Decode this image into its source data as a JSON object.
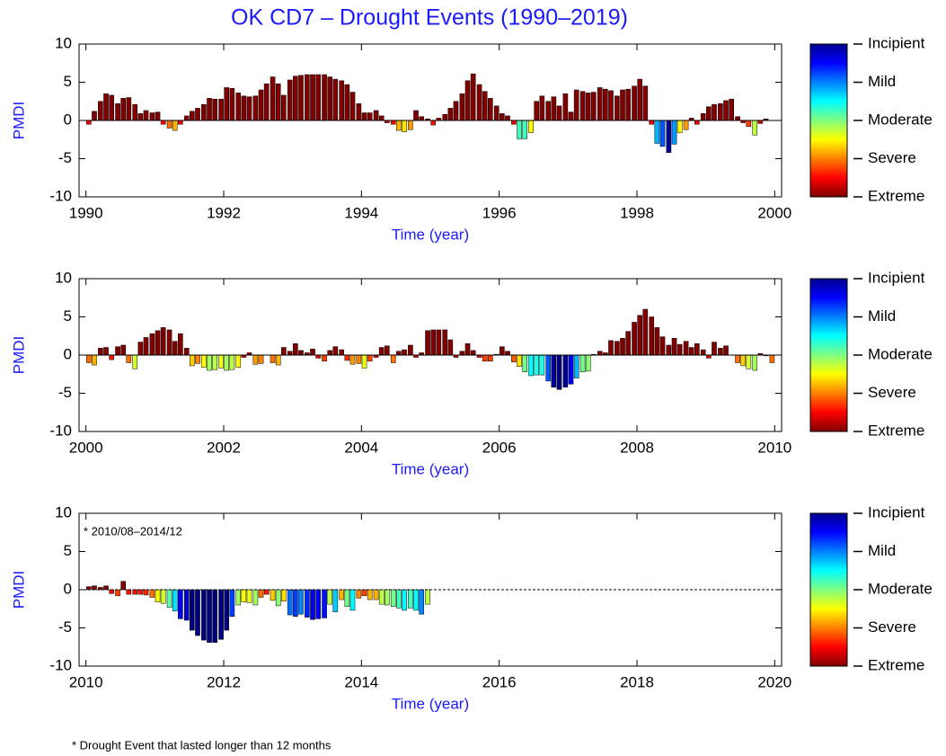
{
  "chart_data": [
    {
      "type": "bar",
      "title": "OK CD7 – Drought Events (1990–2019)",
      "xlabel": "Time (year)",
      "ylabel": "PMDI",
      "xlim": [
        1989.9,
        2000.1
      ],
      "xticks": [
        1990,
        1992,
        1994,
        1996,
        1998,
        2000
      ],
      "ylim": [
        -10,
        10
      ],
      "yticks": [
        -10,
        -5,
        0,
        5,
        10
      ],
      "colorbar_labels": [
        "Incipient",
        "Mild",
        "Moderate",
        "Severe",
        "Extreme"
      ],
      "x": [
        1990,
        1990.08,
        1990.17,
        1990.25,
        1990.33,
        1990.42,
        1990.5,
        1990.58,
        1990.67,
        1990.75,
        1990.83,
        1990.92,
        1991,
        1991.08,
        1991.17,
        1991.25,
        1991.33,
        1991.42,
        1991.5,
        1991.58,
        1991.67,
        1991.75,
        1991.83,
        1991.92,
        1992,
        1992.08,
        1992.17,
        1992.25,
        1992.33,
        1992.42,
        1992.5,
        1992.58,
        1992.67,
        1992.75,
        1992.83,
        1992.92,
        1993,
        1993.08,
        1993.17,
        1993.25,
        1993.33,
        1993.42,
        1993.5,
        1993.58,
        1993.67,
        1993.75,
        1993.83,
        1993.92,
        1994,
        1994.08,
        1994.17,
        1994.25,
        1994.33,
        1994.42,
        1994.5,
        1994.58,
        1994.67,
        1994.75,
        1994.83,
        1994.92,
        1995,
        1995.08,
        1995.17,
        1995.25,
        1995.33,
        1995.42,
        1995.5,
        1995.58,
        1995.67,
        1995.75,
        1995.83,
        1995.92,
        1996,
        1996.08,
        1996.17,
        1996.25,
        1996.33,
        1996.42,
        1996.5,
        1996.58,
        1996.67,
        1996.75,
        1996.83,
        1996.92,
        1997,
        1997.08,
        1997.17,
        1997.25,
        1997.33,
        1997.42,
        1997.5,
        1997.58,
        1997.67,
        1997.75,
        1997.83,
        1997.92,
        1998,
        1998.08,
        1998.17,
        1998.25,
        1998.33,
        1998.42,
        1998.5,
        1998.58,
        1998.67,
        1998.75,
        1998.83,
        1998.92,
        1999,
        1999.08,
        1999.17,
        1999.25,
        1999.33,
        1999.42,
        1999.5,
        1999.58,
        1999.67,
        1999.75,
        1999.83,
        1999.92
      ],
      "values": [
        -0.5,
        1.2,
        2.5,
        3.5,
        3.3,
        2.2,
        2.9,
        3.0,
        2.1,
        0.9,
        1.3,
        1.0,
        1.1,
        -0.5,
        -1.0,
        -1.3,
        -0.5,
        0.6,
        1.2,
        1.6,
        2.1,
        2.9,
        2.8,
        2.8,
        4.3,
        4.2,
        3.6,
        3.2,
        3.1,
        3.2,
        4.0,
        4.8,
        5.7,
        4.8,
        3.3,
        5.3,
        5.8,
        5.9,
        6.0,
        6.0,
        6.0,
        6.0,
        5.7,
        5.4,
        5.2,
        4.7,
        3.7,
        2.2,
        1.0,
        1.0,
        1.3,
        0.6,
        -0.3,
        -0.5,
        -1.3,
        -1.5,
        -1.2,
        1.3,
        0.5,
        0.2,
        -0.6,
        0.3,
        0.8,
        1.6,
        2.5,
        3.5,
        5.2,
        6.1,
        4.7,
        3.8,
        2.9,
        1.9,
        0.9,
        0.6,
        -0.5,
        -2.4,
        -2.4,
        -1.6,
        2.5,
        3.2,
        2.5,
        3.1,
        1.9,
        3.5,
        1.1,
        4.0,
        3.8,
        3.6,
        3.7,
        4.3,
        4.1,
        3.9,
        3.2,
        4.0,
        4.1,
        4.5,
        5.4,
        4.5,
        -0.5,
        -3.0,
        -3.4,
        -4.2,
        -3.1,
        -1.6,
        -1.2,
        0.3,
        -0.5,
        0.9,
        1.8,
        2.1,
        2.2,
        2.6,
        2.8,
        0.5,
        -0.3,
        -0.8,
        -1.9,
        -0.4,
        0.2,
        0.0
      ]
    },
    {
      "type": "bar",
      "xlabel": "Time (year)",
      "ylabel": "PMDI",
      "xlim": [
        1999.9,
        2010.1
      ],
      "xticks": [
        2000,
        2002,
        2004,
        2006,
        2008,
        2010
      ],
      "ylim": [
        -10,
        10
      ],
      "yticks": [
        -10,
        -5,
        0,
        5,
        10
      ],
      "colorbar_labels": [
        "Incipient",
        "Mild",
        "Moderate",
        "Severe",
        "Extreme"
      ],
      "x": [
        2000,
        2000.08,
        2000.17,
        2000.25,
        2000.33,
        2000.42,
        2000.5,
        2000.58,
        2000.67,
        2000.75,
        2000.83,
        2000.92,
        2001,
        2001.08,
        2001.17,
        2001.25,
        2001.33,
        2001.42,
        2001.5,
        2001.58,
        2001.67,
        2001.75,
        2001.83,
        2001.92,
        2002,
        2002.08,
        2002.17,
        2002.25,
        2002.33,
        2002.42,
        2002.5,
        2002.58,
        2002.67,
        2002.75,
        2002.83,
        2002.92,
        2003,
        2003.08,
        2003.17,
        2003.25,
        2003.33,
        2003.42,
        2003.5,
        2003.58,
        2003.67,
        2003.75,
        2003.83,
        2003.92,
        2004,
        2004.08,
        2004.17,
        2004.25,
        2004.33,
        2004.42,
        2004.5,
        2004.58,
        2004.67,
        2004.75,
        2004.83,
        2004.92,
        2005,
        2005.08,
        2005.17,
        2005.25,
        2005.33,
        2005.42,
        2005.5,
        2005.58,
        2005.67,
        2005.75,
        2005.83,
        2005.92,
        2006,
        2006.08,
        2006.17,
        2006.25,
        2006.33,
        2006.42,
        2006.5,
        2006.58,
        2006.67,
        2006.75,
        2006.83,
        2006.92,
        2007,
        2007.08,
        2007.17,
        2007.25,
        2007.33,
        2007.42,
        2007.5,
        2007.58,
        2007.67,
        2007.75,
        2007.83,
        2007.92,
        2008,
        2008.08,
        2008.17,
        2008.25,
        2008.33,
        2008.42,
        2008.5,
        2008.58,
        2008.67,
        2008.75,
        2008.83,
        2008.92,
        2009,
        2009.08,
        2009.17,
        2009.25,
        2009.33,
        2009.42,
        2009.5,
        2009.58,
        2009.67,
        2009.75,
        2009.83,
        2009.92
      ],
      "values": [
        -1.0,
        -1.3,
        0.9,
        1.0,
        -0.6,
        1.1,
        1.3,
        -1.0,
        -1.8,
        1.7,
        2.3,
        2.8,
        3.2,
        3.6,
        3.3,
        1.8,
        2.8,
        0.9,
        -1.4,
        -1.1,
        -1.6,
        -2.0,
        -1.9,
        -1.7,
        -2.0,
        -1.9,
        -1.6,
        -0.3,
        0.3,
        -1.2,
        -1.1,
        0.0,
        -1.0,
        -1.3,
        1.0,
        0.5,
        1.5,
        0.6,
        0.3,
        0.8,
        -0.4,
        -0.8,
        0.6,
        1.1,
        0.7,
        -0.7,
        -1.2,
        -1.1,
        -1.7,
        -0.8,
        -0.3,
        1.0,
        1.2,
        -1.0,
        0.5,
        0.7,
        1.3,
        -0.3,
        0.3,
        3.2,
        3.3,
        3.3,
        3.3,
        2.0,
        -0.3,
        0.5,
        1.5,
        0.6,
        -0.3,
        -0.8,
        -0.8,
        0.1,
        1.1,
        0.5,
        -0.9,
        -1.5,
        -2.2,
        -2.7,
        -2.6,
        -2.6,
        -3.4,
        -4.2,
        -4.5,
        -4.2,
        -3.8,
        -3.0,
        -2.2,
        -2.1,
        0.1,
        0.5,
        0.3,
        1.9,
        1.8,
        2.2,
        3.1,
        4.3,
        5.2,
        6.0,
        5.0,
        3.6,
        2.4,
        1.3,
        2.2,
        1.4,
        1.8,
        1.0,
        1.5,
        0.7,
        -0.4,
        1.7,
        0.9,
        1.2,
        0.0,
        -1.0,
        -1.4,
        -1.8,
        -2.0,
        0.2,
        -0.1,
        -1.0
      ]
    },
    {
      "type": "bar",
      "xlabel": "Time (year)",
      "ylabel": "PMDI",
      "annotation": "* 2010/08–2014/12",
      "note": "* Drought Event that lasted longer than 12 months",
      "xlim": [
        2009.9,
        2020.1
      ],
      "xticks": [
        2010,
        2012,
        2014,
        2016,
        2018,
        2020
      ],
      "ylim": [
        -10,
        10
      ],
      "yticks": [
        -10,
        -5,
        0,
        5,
        10
      ],
      "colorbar_labels": [
        "Incipient",
        "Mild",
        "Moderate",
        "Severe",
        "Extreme"
      ],
      "x": [
        2010,
        2010.08,
        2010.17,
        2010.25,
        2010.33,
        2010.42,
        2010.5,
        2010.58,
        2010.67,
        2010.75,
        2010.83,
        2010.92,
        2011,
        2011.08,
        2011.17,
        2011.25,
        2011.33,
        2011.42,
        2011.5,
        2011.58,
        2011.67,
        2011.75,
        2011.83,
        2011.92,
        2012,
        2012.08,
        2012.17,
        2012.25,
        2012.33,
        2012.42,
        2012.5,
        2012.58,
        2012.67,
        2012.75,
        2012.83,
        2012.92,
        2013,
        2013.08,
        2013.17,
        2013.25,
        2013.33,
        2013.42,
        2013.5,
        2013.58,
        2013.67,
        2013.75,
        2013.83,
        2013.92,
        2014,
        2014.08,
        2014.17,
        2014.25,
        2014.33,
        2014.42,
        2014.5,
        2014.58,
        2014.67,
        2014.75,
        2014.83,
        2014.92
      ],
      "values": [
        0.4,
        0.5,
        0.3,
        0.5,
        -0.5,
        -0.8,
        1.1,
        -0.6,
        -0.6,
        -0.6,
        -0.7,
        -1.0,
        -1.6,
        -1.8,
        -2.3,
        -2.8,
        -3.8,
        -4.0,
        -5.3,
        -6.0,
        -6.6,
        -6.9,
        -6.9,
        -6.5,
        -5.3,
        -3.5,
        -2.0,
        -1.6,
        -1.7,
        -2.0,
        -1.0,
        -0.6,
        -1.4,
        -2.1,
        -1.5,
        -3.3,
        -3.5,
        -3.2,
        -3.6,
        -3.9,
        -3.8,
        -3.7,
        -1.9,
        -2.9,
        -1.3,
        -2.2,
        -2.7,
        -1.1,
        -0.8,
        -1.3,
        -1.3,
        -1.9,
        -2.0,
        -2.2,
        -2.4,
        -2.7,
        -2.4,
        -2.7,
        -3.2,
        -1.9
      ]
    }
  ]
}
